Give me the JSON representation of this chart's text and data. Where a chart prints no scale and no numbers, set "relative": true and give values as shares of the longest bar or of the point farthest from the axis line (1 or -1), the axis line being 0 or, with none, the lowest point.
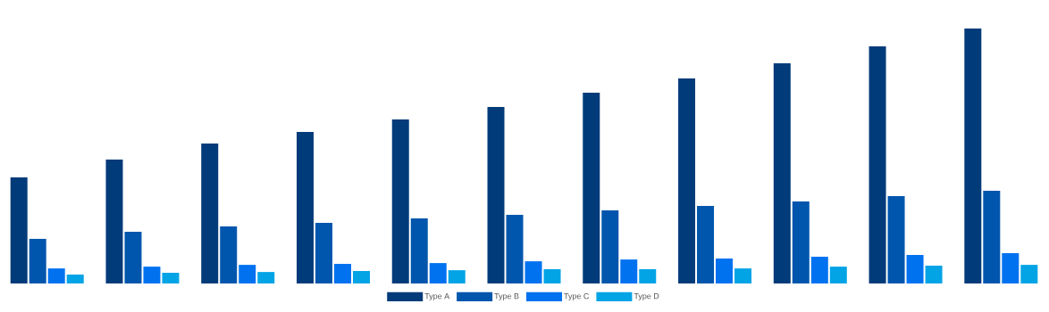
{
  "chart_data": {
    "type": "bar",
    "relative": true,
    "legend": "bottom",
    "categories": [
      null,
      null,
      null,
      null,
      null,
      null,
      null,
      null,
      null,
      null,
      null
    ],
    "series": [
      {
        "name": "Type A",
        "color": "#023b7a",
        "values": [
          0.416,
          0.486,
          0.549,
          0.594,
          0.643,
          0.692,
          0.748,
          0.804,
          0.864,
          0.93,
          1.0
        ]
      },
      {
        "name": "Type B",
        "color": "#0056ad",
        "values": [
          0.175,
          0.203,
          0.224,
          0.238,
          0.255,
          0.269,
          0.287,
          0.304,
          0.322,
          0.343,
          0.364
        ]
      },
      {
        "name": "Type C",
        "color": "#0072f0",
        "values": [
          0.059,
          0.066,
          0.073,
          0.077,
          0.08,
          0.087,
          0.094,
          0.098,
          0.105,
          0.112,
          0.119
        ]
      },
      {
        "name": "Type D",
        "color": "#03a4e6",
        "values": [
          0.035,
          0.042,
          0.045,
          0.049,
          0.052,
          0.056,
          0.056,
          0.059,
          0.066,
          0.07,
          0.073
        ]
      }
    ]
  }
}
